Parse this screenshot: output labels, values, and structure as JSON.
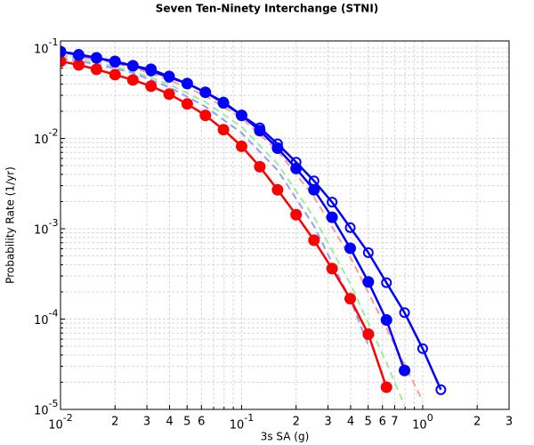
{
  "chart_data": {
    "type": "line",
    "title": "Seven Ten-Ninety Interchange  (STNI)",
    "x_label": "3s SA (g)",
    "y_label": "Probability Rate (1/yr)",
    "xlog": true,
    "ylog": true,
    "grid": true,
    "xlim": [
      0.01,
      3
    ],
    "ylim": [
      1e-05,
      0.12
    ],
    "xticks": [
      {
        "value": 0.01,
        "label": "10",
        "exponent": "-2"
      },
      {
        "value": 0.02,
        "label": "2"
      },
      {
        "value": 0.03,
        "label": "3"
      },
      {
        "value": 0.04,
        "label": "4"
      },
      {
        "value": 0.05,
        "label": "5"
      },
      {
        "value": 0.06,
        "label": "6"
      },
      {
        "value": 0.1,
        "label": "10",
        "exponent": "-1"
      },
      {
        "value": 0.2,
        "label": "2"
      },
      {
        "value": 0.3,
        "label": "3"
      },
      {
        "value": 0.4,
        "label": "4"
      },
      {
        "value": 0.5,
        "label": "5"
      },
      {
        "value": 0.6,
        "label": "6"
      },
      {
        "value": 0.7,
        "label": "7"
      },
      {
        "value": 1,
        "label": "10",
        "exponent": "0"
      },
      {
        "value": 2,
        "label": "2"
      },
      {
        "value": 3,
        "label": "3"
      }
    ],
    "xticks_minor": [
      0.07,
      0.08,
      0.09,
      0.8,
      0.9
    ],
    "yticks": [
      {
        "value": 0.1,
        "label": "10",
        "exponent": "-1"
      },
      {
        "value": 0.01,
        "label": "10",
        "exponent": "-2"
      },
      {
        "value": 0.001,
        "label": "10",
        "exponent": "-3"
      },
      {
        "value": 0.0001,
        "label": "10",
        "exponent": "-4"
      },
      {
        "value": 1e-05,
        "label": "10",
        "exponent": "-5"
      }
    ],
    "yticks_minor": [
      2e-05,
      3e-05,
      4e-05,
      5e-05,
      6e-05,
      7e-05,
      8e-05,
      9e-05,
      0.0002,
      0.0003,
      0.0004,
      0.0005,
      0.0006,
      0.0007,
      0.0008,
      0.0009,
      0.002,
      0.003,
      0.004,
      0.005,
      0.006,
      0.007,
      0.008,
      0.009,
      0.02,
      0.03,
      0.04,
      0.05,
      0.06,
      0.07,
      0.08,
      0.09
    ],
    "series": [
      {
        "color": "#ff9999",
        "dashed": true,
        "marker": "none",
        "x": [
          0.01,
          0.0158,
          0.0251,
          0.0398,
          0.0631,
          0.1,
          0.158,
          0.251,
          0.398,
          0.631,
          1
        ],
        "values": [
          0.0835,
          0.0746,
          0.0609,
          0.0444,
          0.0296,
          0.0168,
          0.0073,
          0.00225,
          0.000487,
          7.9e-05,
          1.24e-05
        ]
      },
      {
        "color": "#99ee99",
        "dashed": true,
        "marker": "none",
        "x": [
          0.01,
          0.0158,
          0.0251,
          0.0398,
          0.0631,
          0.1,
          0.158,
          0.251,
          0.398,
          0.631,
          0.794
        ],
        "values": [
          0.0798,
          0.0697,
          0.0556,
          0.0397,
          0.0253,
          0.0134,
          0.00521,
          0.00134,
          0.000247,
          3.3e-05,
          1.1e-05
        ]
      },
      {
        "color": "#9999ff",
        "dashed": true,
        "marker": "none",
        "x": [
          0.01,
          0.0158,
          0.0251,
          0.0398,
          0.0631,
          0.1,
          0.158,
          0.251,
          0.398,
          0.501
        ],
        "values": [
          0.0763,
          0.0666,
          0.0531,
          0.037,
          0.0225,
          0.0115,
          0.00445,
          0.00107,
          0.000166,
          5.1e-05
        ]
      },
      {
        "color": "#ff0000",
        "dashed": false,
        "marker": "filled",
        "x": [
          0.01,
          0.0126,
          0.0158,
          0.02,
          0.0251,
          0.0316,
          0.0398,
          0.0501,
          0.0631,
          0.0794,
          0.1,
          0.126,
          0.158,
          0.2,
          0.251,
          0.316,
          0.398,
          0.501,
          0.631
        ],
        "values": [
          0.0713,
          0.0652,
          0.0582,
          0.0508,
          0.0444,
          0.0379,
          0.0309,
          0.0241,
          0.018,
          0.0125,
          0.00817,
          0.00486,
          0.0027,
          0.00143,
          0.000746,
          0.000362,
          0.000168,
          6.8e-05,
          1.76e-05
        ]
      },
      {
        "color": "#0000ff",
        "dashed": false,
        "marker": "filled",
        "x": [
          0.01,
          0.0126,
          0.0158,
          0.02,
          0.0251,
          0.0316,
          0.0398,
          0.0501,
          0.0631,
          0.0794,
          0.1,
          0.126,
          0.158,
          0.2,
          0.251,
          0.316,
          0.398,
          0.501,
          0.631,
          0.794
        ],
        "values": [
          0.0914,
          0.0835,
          0.078,
          0.0713,
          0.0637,
          0.0582,
          0.0485,
          0.0405,
          0.0324,
          0.0247,
          0.018,
          0.0122,
          0.0078,
          0.00465,
          0.0027,
          0.00134,
          0.000608,
          0.000258,
          9.77e-05,
          2.7e-05
        ]
      },
      {
        "color": "#0000ff",
        "dashed": false,
        "marker": "open",
        "x": [
          0.01,
          0.0126,
          0.0158,
          0.02,
          0.0251,
          0.0316,
          0.0398,
          0.0501,
          0.0631,
          0.0794,
          0.1,
          0.126,
          0.158,
          0.2,
          0.251,
          0.316,
          0.398,
          0.501,
          0.631,
          0.794,
          1,
          1.26
        ],
        "values": [
          0.0914,
          0.0854,
          0.078,
          0.0697,
          0.0637,
          0.0556,
          0.0475,
          0.0405,
          0.0324,
          0.0253,
          0.018,
          0.0131,
          0.0087,
          0.00546,
          0.00339,
          0.00197,
          0.00103,
          0.000544,
          0.000253,
          0.000118,
          4.71e-05,
          1.65e-05
        ]
      }
    ]
  }
}
